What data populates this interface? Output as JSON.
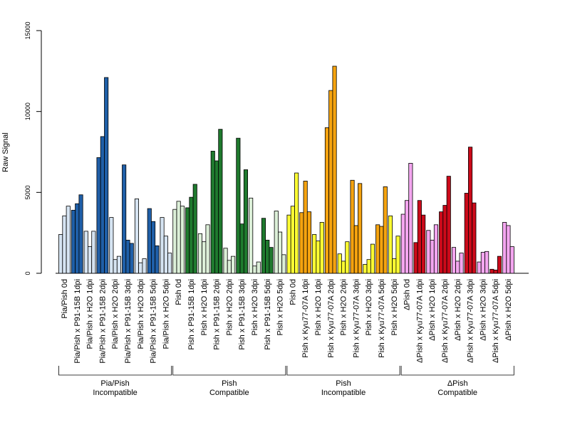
{
  "chart_data": {
    "type": "bar",
    "title": "",
    "xlabel": "",
    "ylabel": "Raw Signal",
    "ylim": [
      0,
      15000
    ],
    "yticks": [
      0,
      5000,
      10000,
      15000
    ],
    "grid": false,
    "legend": "none",
    "bars_per_category": 3,
    "categories": [
      "Pia/Pish 0d",
      "Pia/Pish x P91-15B 1dpi",
      "Pia/Pish x H2O 1dpi",
      "Pia/Pish x P91-15B 2dpi",
      "Pia/Pish x H2O 2dpi",
      "Pia/Pish x P91-15B 3dpi",
      "Pia/Pish x H2O 3dpi",
      "Pia/Pish x P91-15B 5dpi",
      "Pia/Pish x H2O 5dpi",
      "Pish 0d",
      "Pish x P91-15B 1dpi",
      "Pish x H2O 1dpi",
      "Pish x P91-15B 2dpi",
      "Pish x H2O 2dpi",
      "Pish x P91-15B 3dpi",
      "Pish x H2O 3dpi",
      "Pish x P91-15B 5dpi",
      "Pish x H2O 5dpi",
      "Pish 0d",
      "Pish x Kyu77-07A 1dpi",
      "Pish x H2O 1dpi",
      "Pish x Kyu77-07A 2dpi",
      "Pish x H2O 2dpi",
      "Pish x Kyu77-07A 3dpi",
      "Pish x H2O 3dpi",
      "Pish x Kyu77-07A 5dpi",
      "Pish x H2O 5dpi",
      "ΔPish 0d",
      "ΔPish x Kyu77-07A 1dpi",
      "ΔPish x H2O 1dpi",
      "ΔPish x Kyu77-07A 2dpi",
      "ΔPish x H2O 2dpi",
      "ΔPish x Kyu77-07A 3dpi",
      "ΔPish x H2O 3dpi",
      "ΔPish x Kyu77-07A 5dpi",
      "ΔPish x H2O 5dpi"
    ],
    "values": [
      [
        2400,
        3550,
        4150
      ],
      [
        3900,
        4300,
        4850
      ],
      [
        2600,
        1650,
        2600
      ],
      [
        7150,
        8450,
        12100
      ],
      [
        3450,
        850,
        1050
      ],
      [
        6700,
        2050,
        1850
      ],
      [
        4600,
        650,
        900
      ],
      [
        4000,
        3200,
        1700
      ],
      [
        3450,
        2300,
        1250
      ],
      [
        3950,
        4450,
        4150
      ],
      [
        4050,
        4700,
        5500
      ],
      [
        2450,
        1950,
        3000
      ],
      [
        7550,
        6950,
        8900
      ],
      [
        1550,
        800,
        1050
      ],
      [
        8350,
        3050,
        6400
      ],
      [
        4650,
        450,
        700
      ],
      [
        3400,
        2050,
        1600
      ],
      [
        3850,
        2550,
        1150
      ],
      [
        3600,
        4150,
        6200
      ],
      [
        3750,
        5700,
        3800
      ],
      [
        2400,
        2000,
        3150
      ],
      [
        9000,
        11300,
        12800
      ],
      [
        1200,
        750,
        1950
      ],
      [
        5750,
        2950,
        5550
      ],
      [
        550,
        850,
        1800
      ],
      [
        3000,
        2900,
        5350
      ],
      [
        3550,
        900,
        2300
      ],
      [
        3650,
        4500,
        6800
      ],
      [
        1900,
        4500,
        3600
      ],
      [
        2650,
        2050,
        3000
      ],
      [
        3800,
        4200,
        6000
      ],
      [
        1600,
        750,
        1250
      ],
      [
        4950,
        7800,
        4350
      ],
      [
        700,
        1300,
        1350
      ],
      [
        250,
        200,
        1050
      ],
      [
        3150,
        2950,
        1650
      ]
    ],
    "groups": [
      {
        "label_line1": "Pia/Pish",
        "label_line2": "Incompatible",
        "start": 0,
        "end": 8
      },
      {
        "label_line1": "Pish",
        "label_line2": "Compatible",
        "start": 9,
        "end": 17
      },
      {
        "label_line1": "Pish",
        "label_line2": "Incompatible",
        "start": 18,
        "end": 26
      },
      {
        "label_line1": "ΔPish",
        "label_line2": "Compatible",
        "start": 27,
        "end": 35
      }
    ],
    "colors": {
      "pia_infected": "#1f5fa8",
      "pia_control": "#d6e4f2",
      "pish_compat_infected": "#1f7a2e",
      "pish_compat_control": "#dcefd8",
      "pish_incompat_base": "#ffff33",
      "pish_incompat_infected": "#f5a30f",
      "pish_incompat_control": "#ffff33",
      "dpish_base": "#f4a6f0",
      "dpish_infected": "#cc0a1a",
      "dpish_control": "#f4a6f0",
      "bar_stroke": "#000000"
    },
    "bar_color_keys": [
      "pia_control",
      "pia_infected",
      "pia_control",
      "pia_infected",
      "pia_control",
      "pia_infected",
      "pia_control",
      "pia_infected",
      "pia_control",
      "pish_compat_control",
      "pish_compat_infected",
      "pish_compat_control",
      "pish_compat_infected",
      "pish_compat_control",
      "pish_compat_infected",
      "pish_compat_control",
      "pish_compat_infected",
      "pish_compat_control",
      "pish_incompat_base",
      "pish_incompat_infected",
      "pish_incompat_control",
      "pish_incompat_infected",
      "pish_incompat_control",
      "pish_incompat_infected",
      "pish_incompat_control",
      "pish_incompat_infected",
      "pish_incompat_control",
      "dpish_base",
      "dpish_infected",
      "dpish_control",
      "dpish_infected",
      "dpish_control",
      "dpish_infected",
      "dpish_control",
      "dpish_infected",
      "dpish_control"
    ]
  }
}
